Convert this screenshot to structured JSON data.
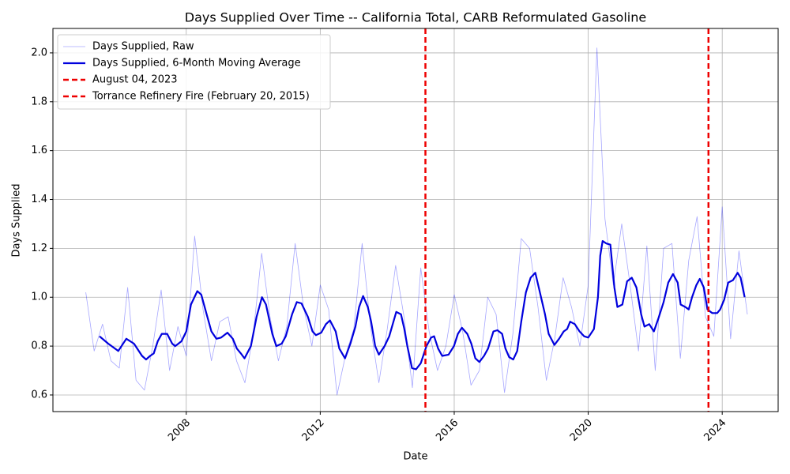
{
  "chart_data": {
    "type": "line",
    "title": "Days Supplied Over Time -- California Total, CARB Reformulated Gasoline",
    "x_label": "Date",
    "y_label": "Days Supplied",
    "xlim": [
      2004.02,
      2025.67
    ],
    "xticks": [
      2008,
      2012,
      2016,
      2020,
      2024
    ],
    "ylim": [
      0.532,
      2.1
    ],
    "yticks": [
      0.6,
      0.8,
      {
        "value": 1.0,
        "label": "1.0"
      },
      1.2,
      1.4,
      1.6,
      1.8,
      {
        "value": 2.0,
        "label": "2.0"
      }
    ],
    "grid": true,
    "legend": "upper left",
    "series": [
      {
        "name": "Days Supplied, Raw",
        "color": "#0000ff",
        "opacity": 0.35,
        "width": 0.8,
        "x": [
          2005.0,
          2005.25,
          2005.5,
          2005.75,
          2006.0,
          2006.25,
          2006.5,
          2006.75,
          2007.0,
          2007.25,
          2007.5,
          2007.75,
          2008.0,
          2008.25,
          2008.5,
          2008.75,
          2009.0,
          2009.25,
          2009.5,
          2009.75,
          2010.0,
          2010.25,
          2010.5,
          2010.75,
          2011.0,
          2011.25,
          2011.5,
          2011.75,
          2012.0,
          2012.25,
          2012.5,
          2012.75,
          2013.0,
          2013.25,
          2013.5,
          2013.75,
          2014.0,
          2014.25,
          2014.5,
          2014.75,
          2015.0,
          2015.25,
          2015.5,
          2015.75,
          2016.0,
          2016.25,
          2016.5,
          2016.75,
          2017.0,
          2017.25,
          2017.5,
          2017.75,
          2018.0,
          2018.25,
          2018.5,
          2018.75,
          2019.0,
          2019.25,
          2019.5,
          2019.75,
          2020.0,
          2020.26,
          2020.5,
          2020.75,
          2021.0,
          2021.25,
          2021.5,
          2021.75,
          2022.0,
          2022.25,
          2022.5,
          2022.75,
          2023.0,
          2023.25,
          2023.5,
          2023.75,
          2024.0,
          2024.25,
          2024.5,
          2024.75
        ],
        "values": [
          1.02,
          0.78,
          0.89,
          0.74,
          0.71,
          1.04,
          0.66,
          0.62,
          0.8,
          1.03,
          0.7,
          0.88,
          0.76,
          1.25,
          0.95,
          0.74,
          0.9,
          0.92,
          0.74,
          0.65,
          0.85,
          1.18,
          0.92,
          0.74,
          0.88,
          1.22,
          0.96,
          0.8,
          1.05,
          0.95,
          0.6,
          0.76,
          0.87,
          1.22,
          0.88,
          0.65,
          0.87,
          1.13,
          0.92,
          0.63,
          1.12,
          0.86,
          0.7,
          0.8,
          1.01,
          0.86,
          0.64,
          0.7,
          1.0,
          0.93,
          0.61,
          0.85,
          1.24,
          1.2,
          0.96,
          0.66,
          0.83,
          1.08,
          0.96,
          0.8,
          1.05,
          2.02,
          1.32,
          1.05,
          1.3,
          1.05,
          0.78,
          1.21,
          0.7,
          1.2,
          1.22,
          0.75,
          1.15,
          1.33,
          0.92,
          0.84,
          1.37,
          0.83,
          1.19,
          0.93
        ]
      },
      {
        "name": "Days Supplied, 6-Month Moving Average",
        "color": "#0000dd",
        "opacity": 1,
        "width": 2.2,
        "x": [
          2005.41,
          2005.67,
          2005.97,
          2006.21,
          2006.44,
          2006.68,
          2006.8,
          2006.92,
          2007.03,
          2007.15,
          2007.27,
          2007.43,
          2007.58,
          2007.67,
          2007.86,
          2008.0,
          2008.14,
          2008.33,
          2008.45,
          2008.61,
          2008.75,
          2008.9,
          2009.04,
          2009.23,
          2009.39,
          2009.51,
          2009.63,
          2009.74,
          2009.93,
          2010.1,
          2010.26,
          2010.38,
          2010.57,
          2010.69,
          2010.85,
          2010.97,
          2011.16,
          2011.3,
          2011.44,
          2011.63,
          2011.77,
          2011.87,
          2012.03,
          2012.17,
          2012.29,
          2012.46,
          2012.57,
          2012.74,
          2012.9,
          2013.05,
          2013.16,
          2013.28,
          2013.42,
          2013.52,
          2013.64,
          2013.75,
          2013.92,
          2014.06,
          2014.27,
          2014.41,
          2014.51,
          2014.6,
          2014.74,
          2014.86,
          2015.0,
          2015.17,
          2015.31,
          2015.4,
          2015.52,
          2015.64,
          2015.83,
          2015.99,
          2016.11,
          2016.23,
          2016.39,
          2016.51,
          2016.63,
          2016.75,
          2016.89,
          2017.01,
          2017.17,
          2017.29,
          2017.43,
          2017.53,
          2017.64,
          2017.76,
          2017.88,
          2018.0,
          2018.14,
          2018.28,
          2018.42,
          2018.54,
          2018.71,
          2018.82,
          2018.99,
          2019.13,
          2019.27,
          2019.37,
          2019.46,
          2019.6,
          2019.74,
          2019.88,
          2020.0,
          2020.17,
          2020.29,
          2020.36,
          2020.43,
          2020.54,
          2020.66,
          2020.78,
          2020.87,
          2021.02,
          2021.16,
          2021.3,
          2021.44,
          2021.58,
          2021.68,
          2021.82,
          2021.96,
          2022.1,
          2022.25,
          2022.39,
          2022.53,
          2022.67,
          2022.76,
          2022.9,
          2023.0,
          2023.1,
          2023.23,
          2023.33,
          2023.45,
          2023.56,
          2023.7,
          2023.85,
          2023.94,
          2024.06,
          2024.18,
          2024.32,
          2024.46,
          2024.55,
          2024.67
        ],
        "values": [
          0.84,
          0.81,
          0.78,
          0.83,
          0.81,
          0.76,
          0.745,
          0.76,
          0.77,
          0.82,
          0.85,
          0.85,
          0.81,
          0.8,
          0.82,
          0.86,
          0.97,
          1.025,
          1.01,
          0.93,
          0.86,
          0.83,
          0.835,
          0.855,
          0.83,
          0.79,
          0.77,
          0.75,
          0.8,
          0.92,
          1.0,
          0.97,
          0.85,
          0.8,
          0.81,
          0.84,
          0.93,
          0.98,
          0.975,
          0.92,
          0.86,
          0.845,
          0.855,
          0.89,
          0.905,
          0.86,
          0.79,
          0.75,
          0.81,
          0.88,
          0.96,
          1.005,
          0.96,
          0.9,
          0.8,
          0.765,
          0.8,
          0.84,
          0.94,
          0.93,
          0.87,
          0.8,
          0.71,
          0.705,
          0.73,
          0.8,
          0.835,
          0.84,
          0.79,
          0.76,
          0.765,
          0.8,
          0.85,
          0.875,
          0.85,
          0.81,
          0.75,
          0.735,
          0.76,
          0.79,
          0.86,
          0.865,
          0.85,
          0.79,
          0.755,
          0.745,
          0.78,
          0.9,
          1.02,
          1.08,
          1.1,
          1.03,
          0.93,
          0.85,
          0.805,
          0.83,
          0.86,
          0.87,
          0.9,
          0.89,
          0.86,
          0.84,
          0.835,
          0.87,
          1.0,
          1.17,
          1.23,
          1.22,
          1.215,
          1.04,
          0.96,
          0.97,
          1.065,
          1.08,
          1.04,
          0.93,
          0.88,
          0.89,
          0.86,
          0.915,
          0.98,
          1.06,
          1.095,
          1.06,
          0.97,
          0.96,
          0.95,
          1.0,
          1.05,
          1.075,
          1.04,
          0.95,
          0.935,
          0.935,
          0.95,
          0.99,
          1.06,
          1.07,
          1.1,
          1.08,
          1.0
        ]
      }
    ],
    "vlines": [
      {
        "name": "August 04, 2023",
        "x": 2023.59,
        "color": "#ee0000"
      },
      {
        "name": "Torrance Refinery Fire (February 20, 2015)",
        "x": 2015.14,
        "color": "#ee0000"
      }
    ]
  }
}
